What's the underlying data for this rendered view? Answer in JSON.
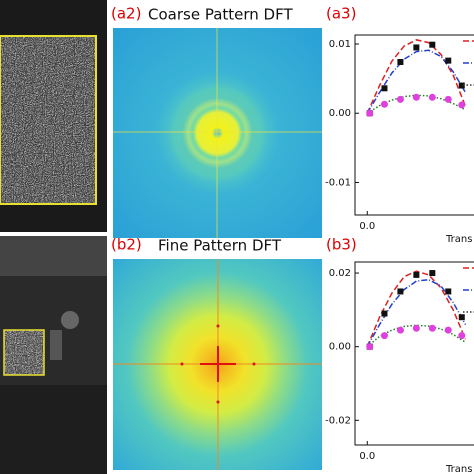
{
  "panels": {
    "a2": {
      "label": "(a2)",
      "title": "Coarse Pattern DFT"
    },
    "a3": {
      "label": "(a3)"
    },
    "b2": {
      "label": "(b2)",
      "title": "Fine Pattern DFT"
    },
    "b3": {
      "label": "(b3)"
    }
  },
  "plots": [
    {
      "xlim": [
        -0.1,
        1.0
      ],
      "ylim": [
        -0.0147,
        0.0113
      ],
      "yticks": [
        {
          "value": 0.01,
          "label": "0.01"
        },
        {
          "value": 0,
          "label": "0.00"
        },
        {
          "value": -0.01,
          "label": "-0.01"
        }
      ],
      "xticks": [
        {
          "value": 0,
          "label": "0.0"
        }
      ],
      "xlabel": "Trans",
      "series": [
        {
          "style": "dash",
          "color": "#e02020",
          "x": [
            0,
            0.1,
            0.2,
            0.3,
            0.4,
            0.5,
            0.6,
            0.7,
            0.8
          ],
          "values": [
            0,
            0.004,
            0.0075,
            0.0097,
            0.0106,
            0.0102,
            0.0085,
            0.0055,
            0.001
          ]
        },
        {
          "style": "dashdot",
          "color": "#2040d0",
          "x": [
            0,
            0.1,
            0.2,
            0.3,
            0.4,
            0.5,
            0.6,
            0.7,
            0.8
          ],
          "values": [
            0,
            0.003,
            0.0058,
            0.0078,
            0.0089,
            0.0091,
            0.0082,
            0.006,
            0.003
          ]
        },
        {
          "style": "dot",
          "color": "#208020",
          "x": [
            0,
            0.1,
            0.2,
            0.3,
            0.4,
            0.5,
            0.6,
            0.7,
            0.8
          ],
          "values": [
            0,
            0.0011,
            0.0019,
            0.0024,
            0.0026,
            0.0025,
            0.0021,
            0.0014,
            0.0005
          ]
        },
        {
          "style": "square",
          "color": "#111111",
          "x": [
            0.02,
            0.14,
            0.27,
            0.4,
            0.53,
            0.66,
            0.77
          ],
          "values": [
            0,
            0.0036,
            0.0074,
            0.0095,
            0.0099,
            0.0076,
            0.004
          ]
        },
        {
          "style": "circle",
          "color": "#e040e0",
          "x": [
            0.02,
            0.14,
            0.27,
            0.4,
            0.53,
            0.66,
            0.77
          ],
          "values": [
            0,
            0.0013,
            0.002,
            0.0023,
            0.0023,
            0.002,
            0.0012
          ]
        }
      ]
    },
    {
      "xlim": [
        -0.1,
        1.0
      ],
      "ylim": [
        -0.0267,
        0.023
      ],
      "yticks": [
        {
          "value": 0.02,
          "label": "0.02"
        },
        {
          "value": 0,
          "label": "0.00"
        },
        {
          "value": -0.02,
          "label": "-0.02"
        }
      ],
      "xticks": [
        {
          "value": 0,
          "label": "0.0"
        }
      ],
      "xlabel": "Trans",
      "series": [
        {
          "style": "dash",
          "color": "#e02020",
          "x": [
            0,
            0.1,
            0.2,
            0.3,
            0.4,
            0.5,
            0.6,
            0.7,
            0.8
          ],
          "values": [
            0,
            0.008,
            0.0145,
            0.019,
            0.0205,
            0.0195,
            0.016,
            0.01,
            0.002
          ]
        },
        {
          "style": "dashdot",
          "color": "#2040d0",
          "x": [
            0,
            0.1,
            0.2,
            0.3,
            0.4,
            0.5,
            0.6,
            0.7,
            0.8
          ],
          "values": [
            0,
            0.006,
            0.0115,
            0.0155,
            0.0178,
            0.0182,
            0.0165,
            0.012,
            0.006
          ]
        },
        {
          "style": "dot",
          "color": "#208020",
          "x": [
            0,
            0.1,
            0.2,
            0.3,
            0.4,
            0.5,
            0.6,
            0.7,
            0.8
          ],
          "values": [
            0,
            0.0028,
            0.0045,
            0.0055,
            0.0058,
            0.0056,
            0.0048,
            0.0033,
            0.0012
          ]
        },
        {
          "style": "square",
          "color": "#111111",
          "x": [
            0.02,
            0.14,
            0.27,
            0.4,
            0.53,
            0.66,
            0.77
          ],
          "values": [
            0,
            0.009,
            0.015,
            0.0195,
            0.02,
            0.015,
            0.008
          ]
        },
        {
          "style": "circle",
          "color": "#e040e0",
          "x": [
            0.02,
            0.14,
            0.27,
            0.4,
            0.53,
            0.66,
            0.77
          ],
          "values": [
            0,
            0.003,
            0.0045,
            0.005,
            0.005,
            0.0045,
            0.003
          ]
        }
      ]
    }
  ]
}
